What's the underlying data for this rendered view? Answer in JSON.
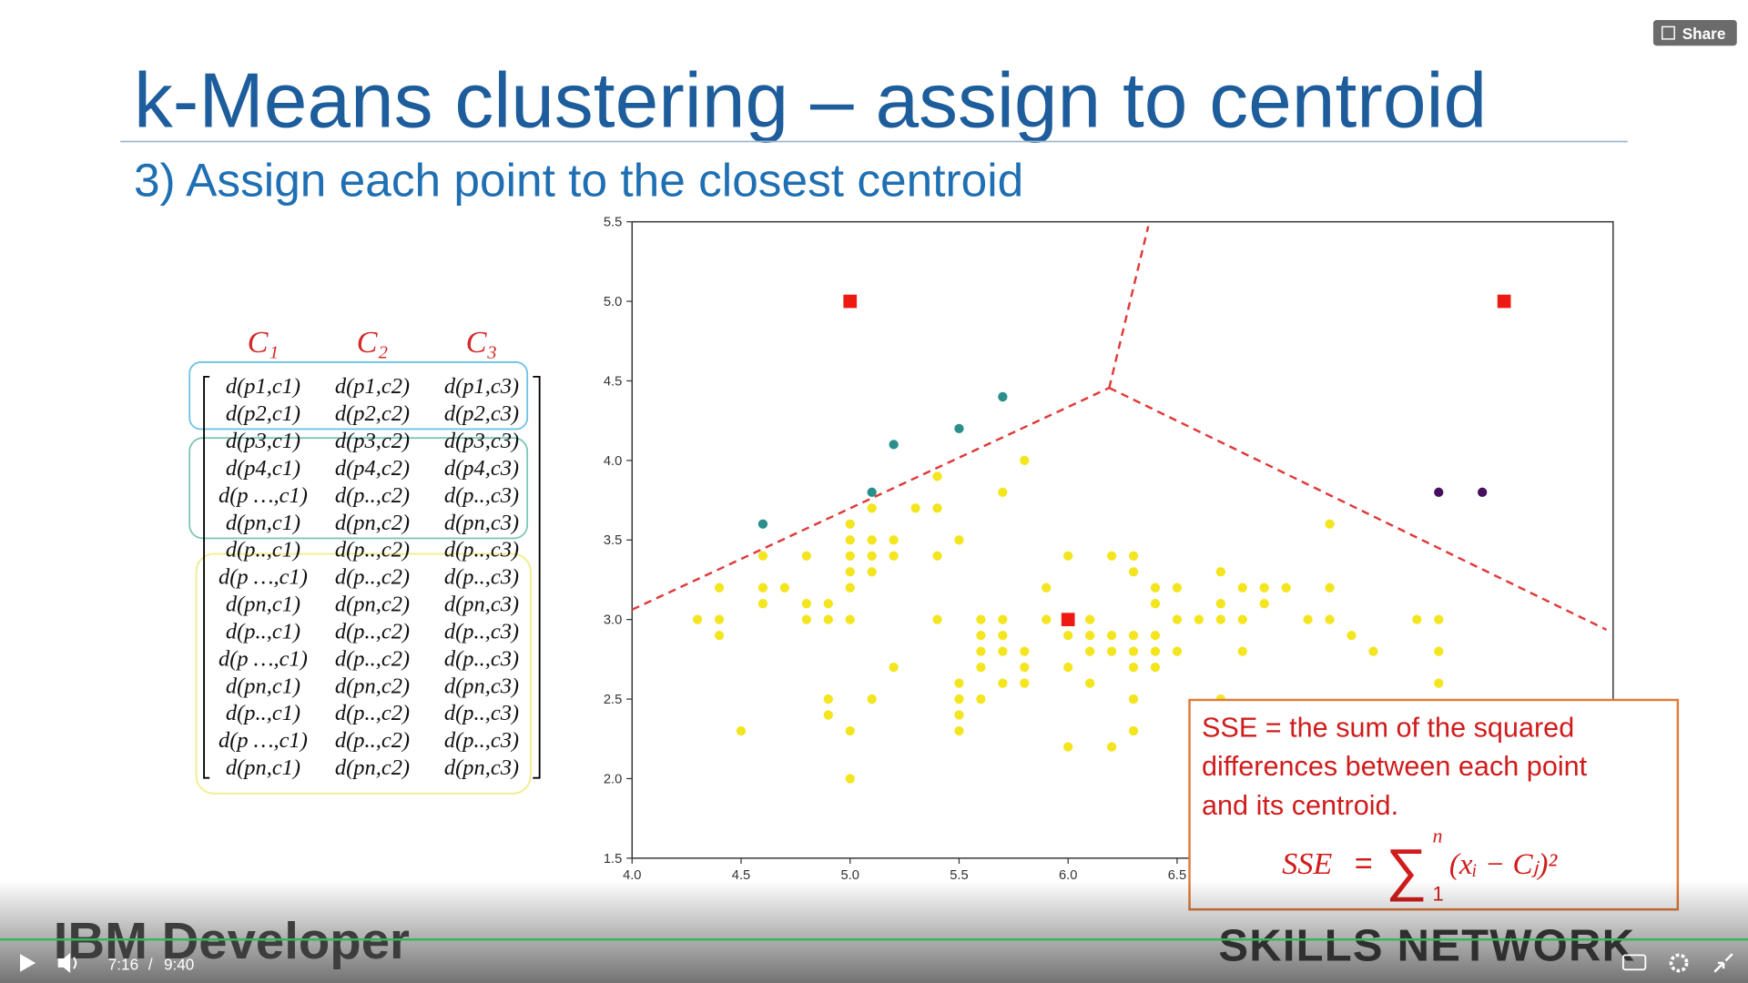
{
  "player": {
    "share": "Share",
    "current": "7:16",
    "separator": "/",
    "duration": "9:40"
  },
  "slide": {
    "title": "k-Means clustering – assign to centroid",
    "subtitle": "3) Assign each point to the closest centroid",
    "matrix": {
      "headers": [
        "C₁",
        "C₂",
        "C₃"
      ],
      "rows": [
        [
          "d(p1,c1)",
          "d(p1,c2)",
          "d(p1,c3)"
        ],
        [
          "d(p2,c1)",
          "d(p2,c2)",
          "d(p2,c3)"
        ],
        [
          "d(p3,c1)",
          "d(p3,c2)",
          "d(p3,c3)"
        ],
        [
          "d(p4,c1)",
          "d(p4,c2)",
          "d(p4,c3)"
        ],
        [
          "d(p …,c1)",
          "d(p..,c2)",
          "d(p..,c3)"
        ],
        [
          "d(pn,c1)",
          "d(pn,c2)",
          "d(pn,c3)"
        ],
        [
          "d(p..,c1)",
          "d(p..,c2)",
          "d(p..,c3)"
        ],
        [
          "d(p …,c1)",
          "d(p..,c2)",
          "d(p..,c3)"
        ],
        [
          "d(pn,c1)",
          "d(pn,c2)",
          "d(pn,c3)"
        ],
        [
          "d(p..,c1)",
          "d(p..,c2)",
          "d(p..,c3)"
        ],
        [
          "d(p …,c1)",
          "d(p..,c2)",
          "d(p..,c3)"
        ],
        [
          "d(pn,c1)",
          "d(pn,c2)",
          "d(pn,c3)"
        ],
        [
          "d(p..,c1)",
          "d(p..,c2)",
          "d(p..,c3)"
        ],
        [
          "d(p …,c1)",
          "d(p..,c2)",
          "d(p..,c3)"
        ],
        [
          "d(pn,c1)",
          "d(pn,c2)",
          "d(pn,c3)"
        ]
      ]
    },
    "note": {
      "lines": [
        "SSE = the sum of the squared",
        "differences between each point",
        "and its centroid."
      ],
      "formula": {
        "lhs": "SSE",
        "eq": "=",
        "sigma": "∑",
        "upper": "n",
        "lower": "1",
        "term": "(xᵢ − Cⱼ)²"
      }
    },
    "logos": {
      "left": "IBM Developer",
      "right": "SKILLS NETWORK"
    }
  },
  "chart_data": {
    "type": "scatter",
    "xlim": [
      4.0,
      8.5
    ],
    "ylim": [
      1.5,
      5.5
    ],
    "xticks": [
      {
        "value": 4,
        "label": "4.0"
      },
      4.5,
      {
        "value": 5,
        "label": "5.0"
      },
      5.5,
      {
        "value": 6,
        "label": "6.0"
      },
      6.5
    ],
    "yticks": [
      1.5,
      {
        "value": 2,
        "label": "2.0"
      },
      2.5,
      {
        "value": 3,
        "label": "3.0"
      },
      3.5,
      {
        "value": 4,
        "label": "4.0"
      },
      4.5,
      {
        "value": 5,
        "label": "5.0"
      },
      5.5
    ],
    "series": [
      {
        "color": "#f3e51e",
        "marker": "circle",
        "x": [
          5.8,
          5.4,
          5.7,
          5.1,
          5.3,
          5.4,
          5.0,
          7.2,
          5.0,
          5.1,
          5.2,
          5.5,
          4.6,
          4.8,
          5.0,
          5.1,
          5.2,
          5.4,
          6.0,
          6.2,
          6.3,
          5.0,
          5.1,
          6.3,
          6.7,
          4.4,
          4.6,
          4.7,
          5.0,
          5.9,
          6.4,
          6.5,
          6.8,
          6.9,
          7.0,
          7.2,
          4.6,
          4.8,
          4.9,
          6.4,
          6.7,
          6.9,
          4.3,
          4.4,
          4.8,
          4.9,
          5.0,
          5.4,
          5.6,
          5.7,
          5.9,
          6.1,
          6.5,
          6.6,
          6.7,
          6.8,
          7.1,
          7.2,
          7.6,
          7.7,
          4.4,
          5.6,
          5.7,
          6.0,
          6.1,
          6.2,
          6.3,
          6.4,
          7.3,
          5.6,
          5.7,
          5.8,
          6.1,
          6.2,
          6.3,
          6.4,
          6.5,
          6.8,
          7.4,
          7.7,
          5.2,
          5.6,
          5.8,
          6.0,
          6.3,
          6.4,
          5.5,
          5.7,
          5.8,
          6.1,
          7.7,
          4.9,
          5.1,
          5.5,
          5.6,
          6.3,
          6.7,
          4.9,
          5.5,
          4.5,
          5.0,
          5.5,
          6.3,
          6.0,
          6.2,
          5.0
        ],
        "values": [
          4.0,
          3.9,
          3.8,
          3.7,
          3.7,
          3.7,
          3.6,
          3.6,
          3.5,
          3.5,
          3.5,
          3.5,
          3.4,
          3.4,
          3.4,
          3.4,
          3.4,
          3.4,
          3.4,
          3.4,
          3.4,
          3.3,
          3.3,
          3.3,
          3.3,
          3.2,
          3.2,
          3.2,
          3.2,
          3.2,
          3.2,
          3.2,
          3.2,
          3.2,
          3.2,
          3.2,
          3.1,
          3.1,
          3.1,
          3.1,
          3.1,
          3.1,
          3.0,
          3.0,
          3.0,
          3.0,
          3.0,
          3.0,
          3.0,
          3.0,
          3.0,
          3.0,
          3.0,
          3.0,
          3.0,
          3.0,
          3.0,
          3.0,
          3.0,
          3.0,
          2.9,
          2.9,
          2.9,
          2.9,
          2.9,
          2.9,
          2.9,
          2.9,
          2.9,
          2.8,
          2.8,
          2.8,
          2.8,
          2.8,
          2.8,
          2.8,
          2.8,
          2.8,
          2.8,
          2.8,
          2.7,
          2.7,
          2.7,
          2.7,
          2.7,
          2.7,
          2.6,
          2.6,
          2.6,
          2.6,
          2.6,
          2.5,
          2.5,
          2.5,
          2.5,
          2.5,
          2.5,
          2.4,
          2.4,
          2.3,
          2.3,
          2.3,
          2.3,
          2.2,
          2.2,
          2.0
        ]
      },
      {
        "color": "#2a8f8a",
        "marker": "circle",
        "x": [
          4.6,
          5.1,
          5.2,
          5.5,
          5.7
        ],
        "values": [
          3.6,
          3.8,
          4.1,
          4.2,
          4.4
        ]
      },
      {
        "color": "#46105e",
        "marker": "circle",
        "x": [
          7.7,
          7.9
        ],
        "values": [
          3.8,
          3.8
        ]
      },
      {
        "color": "#ee1a12",
        "marker": "square",
        "x": [
          5.0,
          8.0,
          6.0
        ],
        "values": [
          5.0,
          5.0,
          3.0
        ]
      }
    ]
  }
}
